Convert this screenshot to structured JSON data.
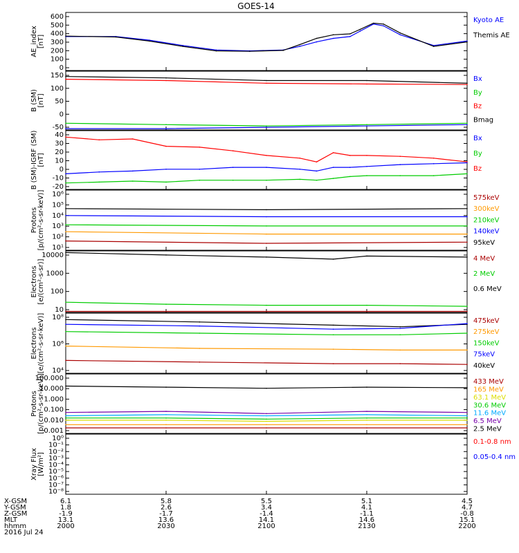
{
  "title": "GOES-14",
  "x_ticks": [
    "2000",
    "2030",
    "2100",
    "2130",
    "2200"
  ],
  "ephem": {
    "labels": [
      "X-GSM",
      "Y-GSM",
      "Z-GSM",
      "MLT",
      "hhmm",
      "2016 Jul 24"
    ],
    "rows": [
      [
        "6.1",
        "5.8",
        "5.5",
        "5.1",
        "4.5"
      ],
      [
        "1.8",
        "2.6",
        "3.4",
        "4.1",
        "4.7"
      ],
      [
        "-1.9",
        "-1.7",
        "-1.4",
        "-1.1",
        "-0.8"
      ],
      [
        "13.1",
        "13.6",
        "14.1",
        "14.6",
        "15.1"
      ],
      [
        "2000",
        "2030",
        "2100",
        "2130",
        "2200"
      ]
    ]
  },
  "colors": {
    "black": "#000000",
    "blue": "#0000ff",
    "green": "#00cc00",
    "red": "#ff0000",
    "darkred": "#aa0000",
    "orange": "#ff9900",
    "yellow": "#dddd00",
    "cyan": "#00aaff",
    "navy": "#0000aa",
    "purple": "#7700aa"
  },
  "chart_data": [
    {
      "type": "line",
      "ylabel": "AE_index\n[nT]",
      "yticks": [
        "600",
        "500",
        "400",
        "300",
        "200",
        "100",
        "0"
      ],
      "ylim": [
        0,
        650
      ],
      "legend": [
        {
          "name": "Kyoto AE",
          "color": "#0000ff"
        },
        {
          "name": "Themis AE",
          "color": "#000000"
        }
      ],
      "series": [
        {
          "name": "Kyoto AE",
          "color": "#0000ff",
          "x": [
            0,
            15,
            25,
            35,
            45,
            55,
            65,
            70,
            75,
            80,
            85,
            88,
            92,
            95,
            100,
            110,
            120
          ],
          "y": [
            380,
            380,
            340,
            280,
            230,
            220,
            230,
            270,
            320,
            360,
            380,
            440,
            520,
            500,
            400,
            280,
            330
          ]
        },
        {
          "name": "Themis AE",
          "color": "#000000",
          "x": [
            0,
            15,
            25,
            35,
            45,
            55,
            65,
            70,
            75,
            80,
            85,
            88,
            92,
            95,
            100,
            110,
            120
          ],
          "y": [
            385,
            375,
            330,
            270,
            220,
            215,
            225,
            290,
            360,
            400,
            410,
            460,
            530,
            520,
            420,
            270,
            320
          ]
        }
      ]
    },
    {
      "type": "line",
      "ylabel": "B (SM)\n[nT]",
      "yticks": [
        "150",
        "100",
        "50",
        "0",
        "-50"
      ],
      "ylim": [
        -60,
        160
      ],
      "legend": [
        {
          "name": "Bx",
          "color": "#0000ff"
        },
        {
          "name": "By",
          "color": "#00cc00"
        },
        {
          "name": "Bz",
          "color": "#ff0000"
        },
        {
          "name": "Bmag",
          "color": "#000000"
        }
      ],
      "series": [
        {
          "name": "Bmag",
          "color": "#000000",
          "x": [
            0,
            30,
            60,
            90,
            120
          ],
          "y": [
            140,
            135,
            125,
            125,
            115
          ]
        },
        {
          "name": "Bz",
          "color": "#ff0000",
          "x": [
            0,
            30,
            60,
            90,
            120
          ],
          "y": [
            130,
            125,
            115,
            112,
            110
          ]
        },
        {
          "name": "By",
          "color": "#00cc00",
          "x": [
            0,
            30,
            60,
            90,
            120
          ],
          "y": [
            -35,
            -40,
            -45,
            -40,
            -35
          ]
        },
        {
          "name": "Bx",
          "color": "#0000ff",
          "x": [
            0,
            30,
            60,
            90,
            120
          ],
          "y": [
            -55,
            -55,
            -50,
            -45,
            -40
          ]
        }
      ]
    },
    {
      "type": "line",
      "ylabel": "B (SM)-IGRF (SM)\n[nT]",
      "yticks": [
        "40",
        "30",
        "20",
        "10",
        "0",
        "-10",
        "-20"
      ],
      "ylim": [
        -22,
        42
      ],
      "legend": [
        {
          "name": "Bx",
          "color": "#0000ff"
        },
        {
          "name": "By",
          "color": "#00cc00"
        },
        {
          "name": "Bz",
          "color": "#ff0000"
        }
      ],
      "series": [
        {
          "name": "Bz",
          "color": "#ff0000",
          "x": [
            0,
            10,
            20,
            30,
            40,
            50,
            60,
            70,
            75,
            80,
            85,
            90,
            100,
            110,
            120
          ],
          "y": [
            35,
            32,
            33,
            25,
            24,
            20,
            15,
            12,
            8,
            18,
            15,
            15,
            14,
            12,
            8
          ]
        },
        {
          "name": "Bx",
          "color": "#0000ff",
          "x": [
            0,
            10,
            20,
            30,
            40,
            50,
            60,
            70,
            75,
            80,
            85,
            90,
            100,
            110,
            120
          ],
          "y": [
            -5,
            -3,
            -2,
            0,
            0,
            2,
            2,
            0,
            -2,
            2,
            2,
            3,
            5,
            6,
            7
          ]
        },
        {
          "name": "By",
          "color": "#00cc00",
          "x": [
            0,
            10,
            20,
            30,
            40,
            50,
            60,
            70,
            75,
            80,
            85,
            90,
            100,
            110,
            120
          ],
          "y": [
            -15,
            -14,
            -13,
            -14,
            -12,
            -12,
            -12,
            -11,
            -12,
            -10,
            -8,
            -7,
            -7,
            -7,
            -5
          ]
        }
      ]
    },
    {
      "type": "line",
      "ylabel": "Protons\n[p/(cm²-s-sr-keV)]",
      "yticks": [
        "10⁶",
        "10⁵",
        "10⁴",
        "10³",
        "10²",
        "10¹"
      ],
      "ylim": [
        1,
        6.2
      ],
      "log": true,
      "legend": [
        {
          "name": "575keV",
          "color": "#aa0000"
        },
        {
          "name": "300keV",
          "color": "#ff9900"
        },
        {
          "name": "210keV",
          "color": "#00cc00"
        },
        {
          "name": "140keV",
          "color": "#0000ff"
        },
        {
          "name": "95keV",
          "color": "#000000"
        }
      ],
      "series": [
        {
          "name": "95keV",
          "color": "#000000",
          "x": [
            0,
            60,
            120
          ],
          "y": [
            4.6,
            4.5,
            4.6
          ]
        },
        {
          "name": "140keV",
          "color": "#0000ff",
          "x": [
            0,
            60,
            120
          ],
          "y": [
            4.0,
            3.9,
            3.9
          ]
        },
        {
          "name": "210keV",
          "color": "#00cc00",
          "x": [
            0,
            60,
            120
          ],
          "y": [
            3.2,
            3.1,
            3.1
          ]
        },
        {
          "name": "300keV",
          "color": "#ff9900",
          "x": [
            0,
            60,
            120
          ],
          "y": [
            2.6,
            2.4,
            2.4
          ]
        },
        {
          "name": "575keV",
          "color": "#aa0000",
          "x": [
            0,
            60,
            120
          ],
          "y": [
            1.8,
            1.6,
            1.7
          ]
        }
      ]
    },
    {
      "type": "line",
      "ylabel": "Electrons\n[e/(cm²-s-sr)]",
      "yticks": [
        "10000",
        "1000",
        "100",
        "10"
      ],
      "ylim": [
        1,
        4
      ],
      "log": true,
      "legend": [
        {
          "name": "4 MeV",
          "color": "#aa0000"
        },
        {
          "name": "2 MeV",
          "color": "#00cc00"
        },
        {
          "name": "0.6 MeV",
          "color": "#000000"
        }
      ],
      "series": [
        {
          "name": "0.6 MeV",
          "color": "#000000",
          "x": [
            0,
            30,
            60,
            80,
            90,
            120
          ],
          "y": [
            3.92,
            3.8,
            3.7,
            3.6,
            3.75,
            3.7
          ]
        },
        {
          "name": "2 MeV",
          "color": "#00cc00",
          "x": [
            0,
            30,
            60,
            90,
            120
          ],
          "y": [
            1.5,
            1.4,
            1.35,
            1.35,
            1.3
          ]
        },
        {
          "name": "4 MeV",
          "color": "#aa0000",
          "x": [
            0,
            30,
            60,
            90,
            120
          ],
          "y": [
            1.05,
            1.05,
            1.05,
            1.05,
            1.05
          ]
        }
      ]
    },
    {
      "type": "line",
      "ylabel": "Electrons\n[e/(cm²-s-sr-keV)]",
      "yticks": [
        "10⁸",
        "10⁶",
        "10⁴"
      ],
      "ylim": [
        2.5,
        10
      ],
      "log": true,
      "legend": [
        {
          "name": "475keV",
          "color": "#aa0000"
        },
        {
          "name": "275keV",
          "color": "#ff9900"
        },
        {
          "name": "150keV",
          "color": "#00cc00"
        },
        {
          "name": "75keV",
          "color": "#0000ff"
        },
        {
          "name": "40keV",
          "color": "#000000"
        }
      ],
      "series": [
        {
          "name": "40keV",
          "color": "#000000",
          "x": [
            0,
            40,
            80,
            100,
            120
          ],
          "y": [
            9.2,
            8.9,
            8.5,
            8.3,
            8.6
          ]
        },
        {
          "name": "75keV",
          "color": "#0000ff",
          "x": [
            0,
            40,
            80,
            100,
            120
          ],
          "y": [
            8.6,
            8.4,
            8.0,
            8.1,
            8.7
          ]
        },
        {
          "name": "150keV",
          "color": "#00cc00",
          "x": [
            0,
            40,
            80,
            100,
            120
          ],
          "y": [
            7.7,
            7.5,
            7.3,
            7.3,
            7.5
          ]
        },
        {
          "name": "275keV",
          "color": "#ff9900",
          "x": [
            0,
            40,
            80,
            100,
            120
          ],
          "y": [
            5.9,
            5.6,
            5.5,
            5.4,
            5.4
          ]
        },
        {
          "name": "475keV",
          "color": "#aa0000",
          "x": [
            0,
            40,
            80,
            100,
            120
          ],
          "y": [
            4.1,
            3.9,
            3.7,
            3.7,
            3.6
          ]
        }
      ]
    },
    {
      "type": "line",
      "ylabel": "Protons\n[p/(cm²-s-sr-keV)]",
      "yticks": [
        "100.000",
        "10.000",
        "1.000",
        "0.100",
        "0.010",
        "0.001"
      ],
      "ylim": [
        -3.2,
        2.2
      ],
      "log": true,
      "legend": [
        {
          "name": "433 MeV",
          "color": "#aa0000"
        },
        {
          "name": "165 MeV",
          "color": "#ff9900"
        },
        {
          "name": "63.1 MeV",
          "color": "#dddd00"
        },
        {
          "name": "30.6 MeV",
          "color": "#00cc00"
        },
        {
          "name": "11.6 MeV",
          "color": "#00aaff"
        },
        {
          "name": "6.5 MeV",
          "color": "#7700aa"
        },
        {
          "name": "2.5 MeV",
          "color": "#000000"
        }
      ],
      "series": [
        {
          "name": "2.5 MeV",
          "color": "#000000",
          "x": [
            0,
            30,
            60,
            90,
            120
          ],
          "y": [
            1.1,
            1.0,
            0.9,
            1.0,
            0.95
          ]
        },
        {
          "name": "6.5 MeV",
          "color": "#7700aa",
          "x": [
            0,
            30,
            60,
            90,
            120
          ],
          "y": [
            -1.3,
            -1.2,
            -1.4,
            -1.2,
            -1.3
          ]
        },
        {
          "name": "11.6 MeV",
          "color": "#00aaff",
          "x": [
            0,
            30,
            60,
            90,
            120
          ],
          "y": [
            -1.6,
            -1.5,
            -1.6,
            -1.5,
            -1.6
          ]
        },
        {
          "name": "30.6 MeV",
          "color": "#00cc00",
          "x": [
            0,
            30,
            60,
            90,
            120
          ],
          "y": [
            -1.8,
            -1.8,
            -1.9,
            -1.8,
            -1.8
          ]
        },
        {
          "name": "63.1 MeV",
          "color": "#dddd00",
          "x": [
            0,
            30,
            60,
            90,
            120
          ],
          "y": [
            -2.0,
            -2.0,
            -2.1,
            -2.0,
            -2.0
          ]
        },
        {
          "name": "165 MeV",
          "color": "#ff9900",
          "x": [
            0,
            30,
            60,
            90,
            120
          ],
          "y": [
            -2.4,
            -2.4,
            -2.4,
            -2.4,
            -2.4
          ]
        },
        {
          "name": "433 MeV",
          "color": "#aa0000",
          "x": [
            0,
            30,
            60,
            90,
            120
          ],
          "y": [
            -2.7,
            -2.7,
            -2.7,
            -2.7,
            -2.7
          ]
        }
      ]
    },
    {
      "type": "line",
      "ylabel": "Xray Flux\n[W/m²]",
      "yticks": [
        "10⁰",
        "10⁻¹",
        "10⁻²",
        "10⁻³",
        "10⁻⁴",
        "10⁻⁵",
        "10⁻⁶",
        "10⁻⁷",
        "10⁻⁸"
      ],
      "ylim": [
        -8,
        0
      ],
      "log": true,
      "legend": [
        {
          "name": "0.1-0.8 nm",
          "color": "#ff0000"
        },
        {
          "name": "0.05-0.4 nm",
          "color": "#0000ff"
        }
      ],
      "series": []
    }
  ]
}
